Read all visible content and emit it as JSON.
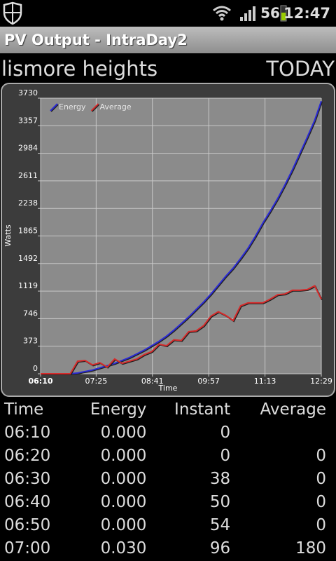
{
  "status_bar": {
    "signal": "56",
    "time": "12:47"
  },
  "app_title": "PV Output - IntraDay2",
  "header": {
    "system": "lismore heights",
    "period": "TODAY"
  },
  "chart_data": {
    "type": "line",
    "y_label": "Watts",
    "x_label": "Time",
    "x": [
      370,
      380,
      390,
      400,
      410,
      420,
      430,
      440,
      450,
      460,
      470,
      480,
      490,
      500,
      510,
      520,
      530,
      540,
      550,
      560,
      570,
      580,
      590,
      600,
      610,
      620,
      630,
      640,
      650,
      660,
      670,
      680,
      690,
      700,
      710,
      720,
      730,
      740,
      749
    ],
    "series": [
      {
        "name": "Energy",
        "color": "#2b2bd6",
        "values": [
          0,
          0,
          0,
          0,
          0,
          10,
          30,
          50,
          80,
          110,
          140,
          180,
          220,
          270,
          320,
          380,
          440,
          510,
          590,
          680,
          770,
          870,
          970,
          1080,
          1200,
          1320,
          1430,
          1560,
          1700,
          1860,
          2040,
          2200,
          2370,
          2560,
          2760,
          2980,
          3200,
          3430,
          3690
        ]
      },
      {
        "name": "Average",
        "color": "#d62b2b",
        "values": [
          0,
          0,
          0,
          0,
          0,
          170,
          180,
          120,
          150,
          90,
          200,
          140,
          170,
          200,
          260,
          300,
          400,
          380,
          460,
          450,
          570,
          580,
          650,
          780,
          840,
          790,
          720,
          920,
          960,
          960,
          960,
          1010,
          1070,
          1080,
          1130,
          1130,
          1140,
          1190,
          1010
        ]
      }
    ],
    "xlim": [
      370,
      749
    ],
    "xticks": [
      {
        "value": 370,
        "label": "06:10"
      },
      {
        "value": 445,
        "label": "07:25"
      },
      {
        "value": 521,
        "label": "08:41"
      },
      {
        "value": 597,
        "label": "09:57"
      },
      {
        "value": 673,
        "label": "11:13"
      },
      {
        "value": 749,
        "label": "12:29"
      }
    ],
    "ylim": [
      0,
      3730
    ],
    "yticks": [
      0,
      373,
      746,
      1119,
      1492,
      1865,
      2238,
      2611,
      2984,
      3357,
      3730
    ],
    "grid": true,
    "legend": "top-left"
  },
  "table": {
    "columns": [
      "Time",
      "Energy",
      "Instant",
      "Average"
    ],
    "rows": [
      [
        "06:10",
        "0.000",
        "0",
        ""
      ],
      [
        "06:20",
        "0.000",
        "0",
        "0"
      ],
      [
        "06:30",
        "0.000",
        "38",
        "0"
      ],
      [
        "06:40",
        "0.000",
        "50",
        "0"
      ],
      [
        "06:50",
        "0.000",
        "54",
        "0"
      ],
      [
        "07:00",
        "0.030",
        "96",
        "180"
      ]
    ]
  }
}
